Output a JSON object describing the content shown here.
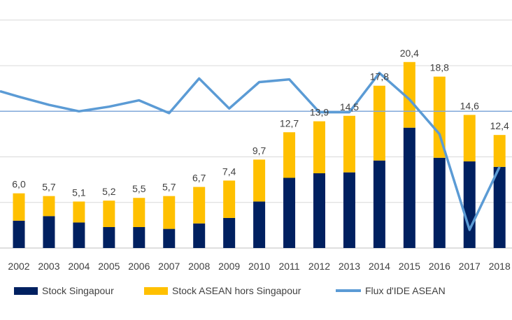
{
  "chart_data": {
    "type": "bar",
    "categories": [
      "2002",
      "2003",
      "2004",
      "2005",
      "2006",
      "2007",
      "2008",
      "2009",
      "2010",
      "2011",
      "2012",
      "2013",
      "2014",
      "2015",
      "2016",
      "2017",
      "2018"
    ],
    "series": [
      {
        "name": "Stock Singapour",
        "kind": "bar",
        "stack": "stock",
        "color": "#002060",
        "values": [
          3.0,
          3.5,
          2.8,
          2.3,
          2.3,
          2.1,
          2.7,
          3.3,
          5.1,
          7.7,
          8.2,
          8.3,
          9.6,
          13.2,
          9.9,
          9.5,
          8.9
        ]
      },
      {
        "name": "Stock ASEAN hors Singapour",
        "kind": "bar",
        "stack": "stock",
        "color": "#FFC000",
        "values": [
          3.0,
          2.2,
          2.3,
          2.9,
          3.2,
          3.6,
          4.0,
          4.1,
          4.6,
          5.0,
          5.7,
          6.2,
          8.2,
          7.2,
          8.9,
          5.1,
          3.5
        ]
      },
      {
        "name": "Flux d'IDE ASEAN",
        "kind": "line",
        "color": "#5B9BD5",
        "values": [
          16.6,
          15.7,
          15.0,
          15.5,
          16.2,
          14.8,
          18.6,
          15.3,
          18.2,
          18.5,
          14.9,
          14.9,
          19.2,
          16.3,
          12.5,
          2.0,
          8.9
        ]
      }
    ],
    "totals_labels": [
      "6,0",
      "5,7",
      "5,1",
      "5,2",
      "5,5",
      "5,7",
      "6,7",
      "7,4",
      "9,7",
      "12,7",
      "13,9",
      "14,5",
      "17,8",
      "20,4",
      "18,8",
      "14,6",
      "12,4"
    ],
    "ylim": [
      0,
      27
    ],
    "reference_line": 15.0,
    "grid": true,
    "legend_position": "bottom",
    "title": "",
    "xlabel": "",
    "ylabel": ""
  },
  "legend": {
    "stock_singapour": "Stock Singapour",
    "stock_asean": "Stock ASEAN hors Singapour",
    "flux": "Flux d'IDE ASEAN"
  }
}
